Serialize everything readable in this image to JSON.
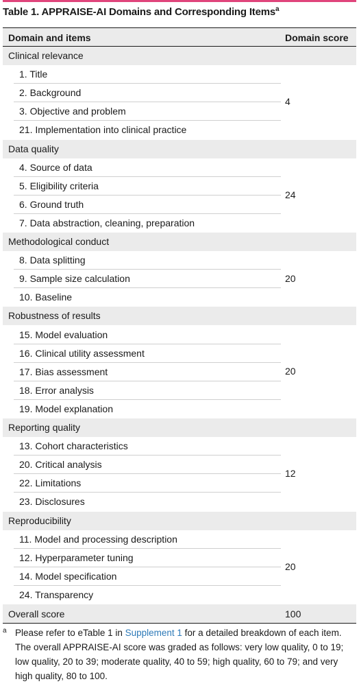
{
  "title": {
    "main": "Table 1. APPRAISE-AI Domains and Corresponding Items",
    "superscript": "a"
  },
  "header": {
    "left": "Domain and items",
    "right": "Domain score"
  },
  "domains": [
    {
      "name": "Clinical relevance",
      "score": "4",
      "items": [
        "1. Title",
        "2. Background",
        "3. Objective and problem",
        "21. Implementation into clinical practice"
      ]
    },
    {
      "name": "Data quality",
      "score": "24",
      "items": [
        "4. Source of data",
        "5. Eligibility criteria",
        "6. Ground truth",
        "7. Data abstraction, cleaning, preparation"
      ]
    },
    {
      "name": "Methodological conduct",
      "score": "20",
      "items": [
        "8. Data splitting",
        "9. Sample size calculation",
        "10. Baseline"
      ]
    },
    {
      "name": "Robustness of results",
      "score": "20",
      "items": [
        "15. Model evaluation",
        "16. Clinical utility assessment",
        "17. Bias assessment",
        "18. Error analysis",
        "19. Model explanation"
      ]
    },
    {
      "name": "Reporting quality",
      "score": "12",
      "items": [
        "13. Cohort characteristics",
        "20. Critical analysis",
        "22. Limitations",
        "23. Disclosures"
      ]
    },
    {
      "name": "Reproducibility",
      "score": "20",
      "items": [
        "11. Model and processing description",
        "12. Hyperparameter tuning",
        "14. Model specification",
        "24. Transparency"
      ]
    }
  ],
  "overall": {
    "label": "Overall score",
    "score": "100"
  },
  "footnote": {
    "mark": "a",
    "text_before_link": "Please refer to eTable 1 in ",
    "link_text": "Supplement 1",
    "text_after_link": " for a detailed breakdown of each item. The overall APPRAISE-AI score was graded as follows: very low quality, 0 to 19; low quality, 20 to 39; moderate quality, 40 to 59; high quality, 60 to 79; and very high quality, 80 to 100.",
    "link_color": "#2e7ab8"
  },
  "colors": {
    "accent": "#e0457b",
    "shade": "#ebebeb"
  }
}
